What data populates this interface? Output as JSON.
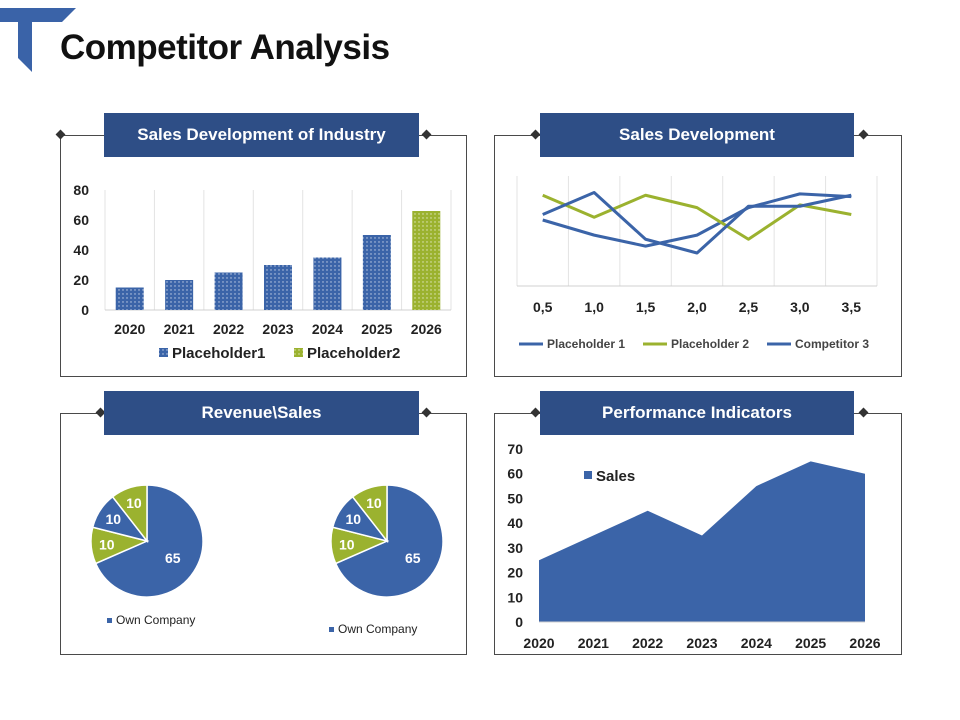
{
  "page": {
    "title": "Competitor Analysis"
  },
  "colors": {
    "blue": "#3b64a8",
    "green": "#9bb22f",
    "header_bg": "#2e4e86",
    "logo": "#3a63a8"
  },
  "panels": {
    "industry": {
      "header": "Sales Development of Industry",
      "chart_key": 0
    },
    "sales_dev": {
      "header": "Sales Development",
      "chart_key": 1
    },
    "revenue": {
      "header": "Revenue\\Sales",
      "chart_key": 2
    },
    "performance": {
      "header": "Performance Indicators",
      "chart_key": 3
    }
  },
  "chart_data": [
    {
      "type": "bar",
      "title": "Sales Development of Industry",
      "categories": [
        "2020",
        "2021",
        "2022",
        "2023",
        "2024",
        "2025",
        "2026"
      ],
      "series": [
        {
          "name": "Placeholder1",
          "values": [
            15,
            20,
            25,
            30,
            35,
            50,
            null
          ],
          "color": "#3b64a8"
        },
        {
          "name": "Placeholder2",
          "values": [
            null,
            null,
            null,
            null,
            null,
            null,
            66
          ],
          "color": "#9bb22f"
        }
      ],
      "ylim": [
        0,
        80
      ],
      "yticks": [
        "0",
        "20",
        "40",
        "60",
        "80"
      ],
      "legend": "bottom",
      "grid": "vertical"
    },
    {
      "type": "line",
      "title": "Sales Development",
      "categories": [
        "0,5",
        "1,0",
        "1,5",
        "2,0",
        "2,5",
        "3,0",
        "3,5"
      ],
      "series": [
        {
          "name": "Placeholder 1",
          "values": [
            4.8,
            3.7,
            2.9,
            3.7,
            5.7,
            6.7,
            6.5
          ],
          "color": "#3b64a8"
        },
        {
          "name": "Placeholder 2",
          "values": [
            6.6,
            5.0,
            6.6,
            5.7,
            3.4,
            5.9,
            5.2
          ],
          "color": "#9bb22f"
        },
        {
          "name": "Competitor 3",
          "values": [
            5.2,
            6.8,
            3.4,
            2.4,
            5.8,
            5.8,
            6.6
          ],
          "color": "#3b64a8"
        }
      ],
      "ylim": [
        0,
        8
      ],
      "legend": "bottom",
      "grid": "vertical"
    },
    {
      "type": "pie",
      "title": "Revenue\\Sales",
      "pies": [
        {
          "slices": [
            {
              "label": "Own Company",
              "value": 65,
              "color": "#3b64a8"
            },
            {
              "label": "",
              "value": 10,
              "color": "#9bb22f"
            },
            {
              "label": "",
              "value": 10,
              "color": "#3b64a8"
            },
            {
              "label": "",
              "value": 10,
              "color": "#9bb22f"
            }
          ],
          "labels": [
            "65",
            "10",
            "10",
            "10"
          ],
          "legend": "Own Company"
        },
        {
          "slices": [
            {
              "label": "Own Company",
              "value": 65,
              "color": "#3b64a8"
            },
            {
              "label": "",
              "value": 10,
              "color": "#9bb22f"
            },
            {
              "label": "",
              "value": 10,
              "color": "#3b64a8"
            },
            {
              "label": "",
              "value": 10,
              "color": "#9bb22f"
            }
          ],
          "labels": [
            "65",
            "10",
            "10",
            "10"
          ],
          "legend": "Own Company"
        }
      ]
    },
    {
      "type": "area",
      "title": "Performance Indicators",
      "categories": [
        "2020",
        "2021",
        "2022",
        "2023",
        "2024",
        "2025",
        "2026"
      ],
      "series": [
        {
          "name": "Sales",
          "values": [
            25,
            35,
            45,
            35,
            55,
            65,
            60
          ],
          "color": "#3b64a8"
        }
      ],
      "ylim": [
        0,
        70
      ],
      "yticks": [
        "0",
        "10",
        "20",
        "30",
        "40",
        "50",
        "60",
        "70"
      ],
      "legend": "top-left"
    }
  ]
}
